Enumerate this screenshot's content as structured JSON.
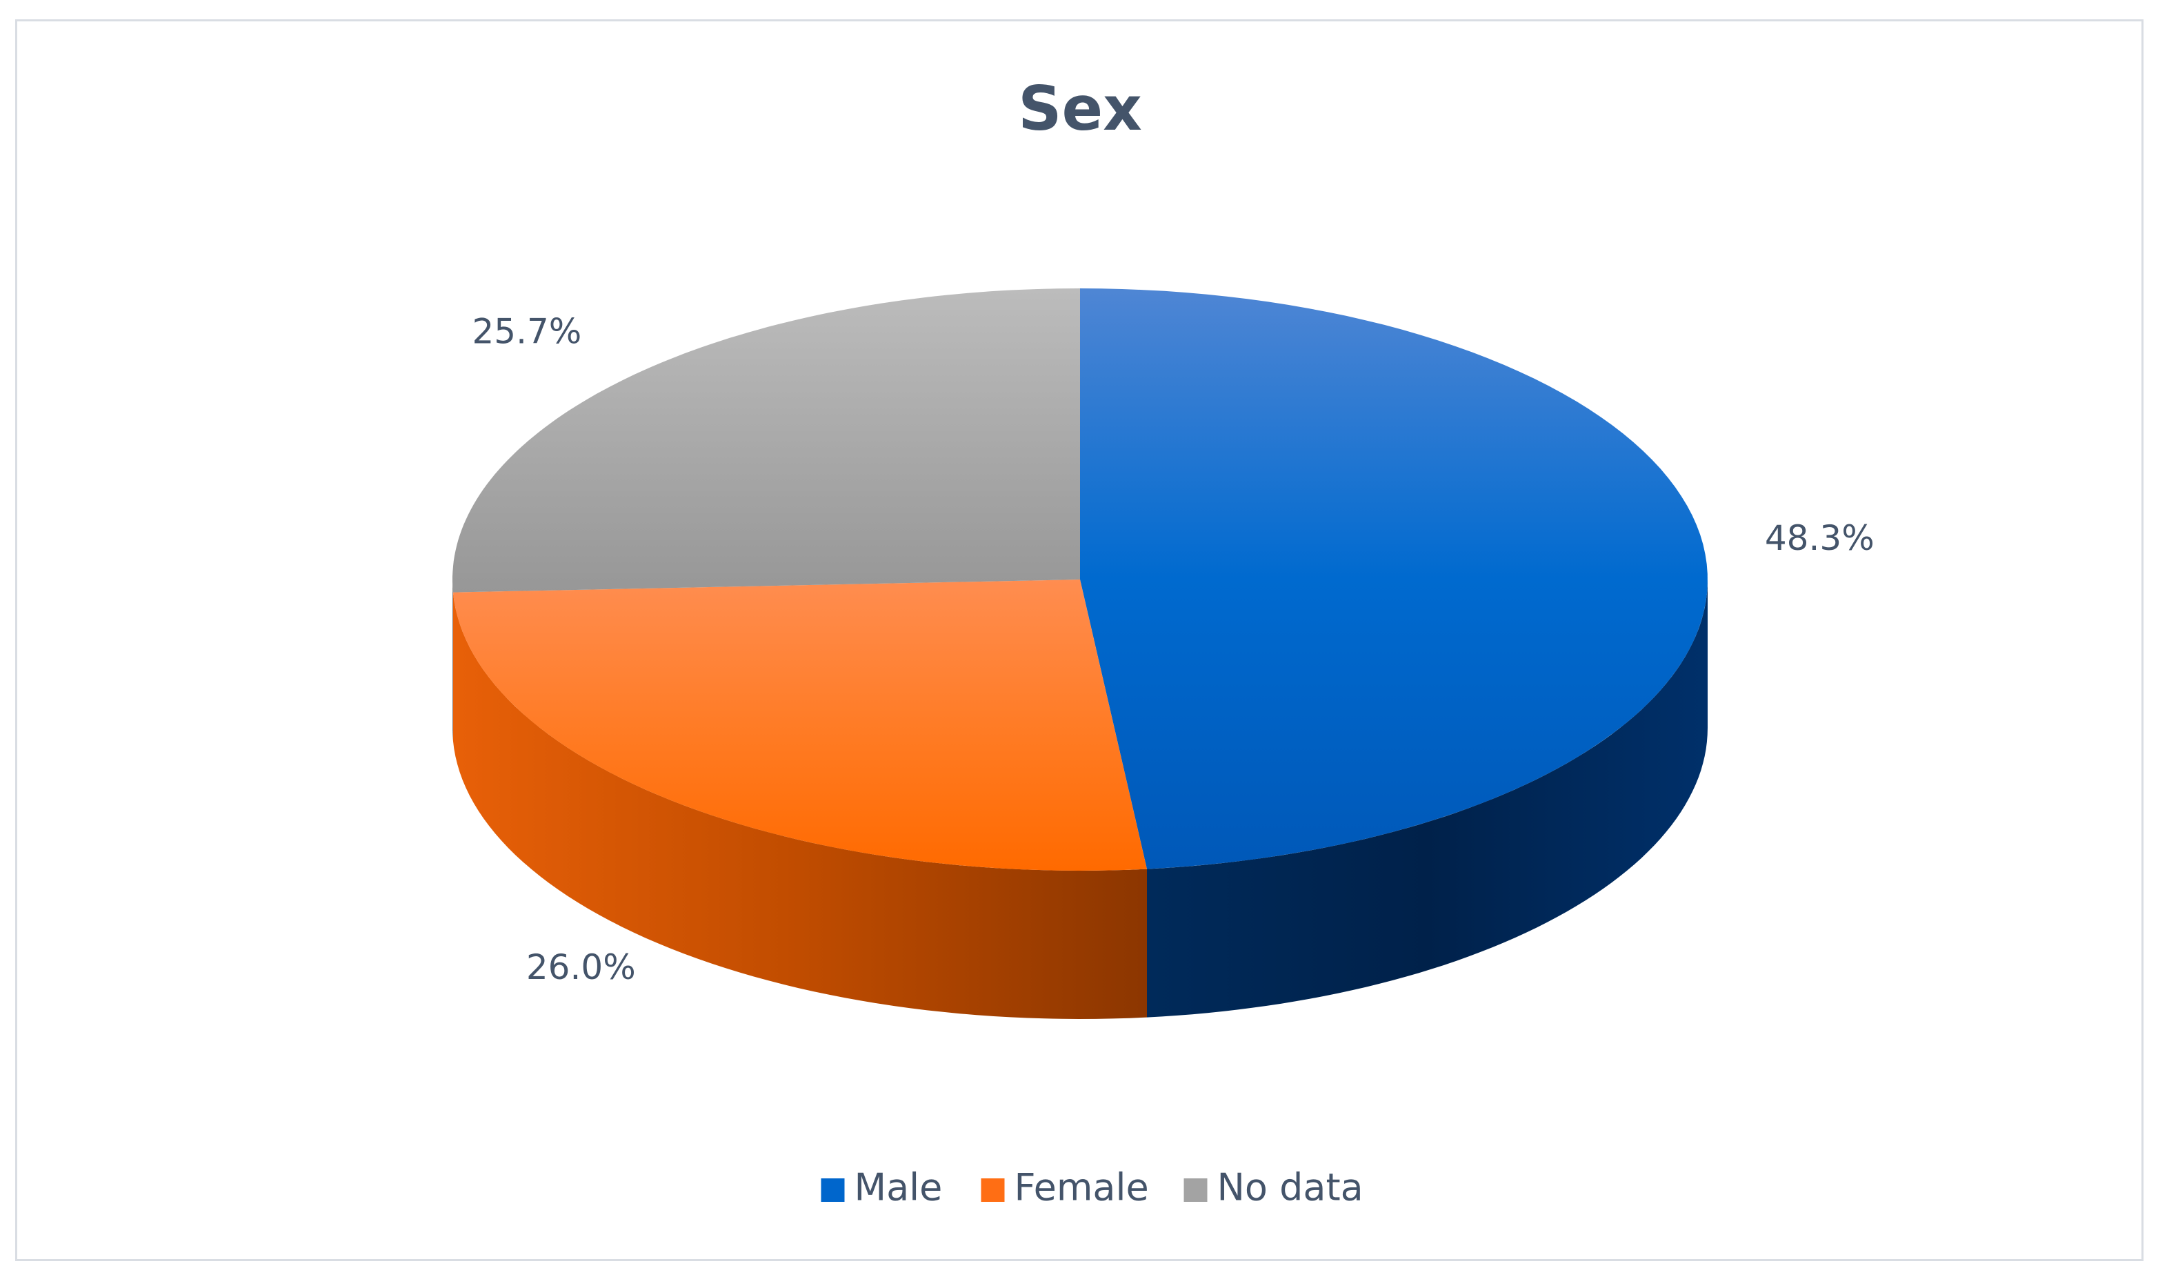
{
  "chart_data": {
    "type": "pie",
    "title": "Sex",
    "categories": [
      "Male",
      "Female",
      "No data"
    ],
    "values": [
      48.3,
      26.0,
      25.7
    ],
    "labels": [
      "48.3%",
      "26.0%",
      "25.7%"
    ],
    "unit": "%",
    "colors": [
      "#0066cc",
      "#ff6e14",
      "#a3a3a3"
    ],
    "side_colors": [
      "#00224a",
      "#b84800",
      "#6e6e6e"
    ],
    "three_d": true,
    "legend_position": "bottom"
  }
}
